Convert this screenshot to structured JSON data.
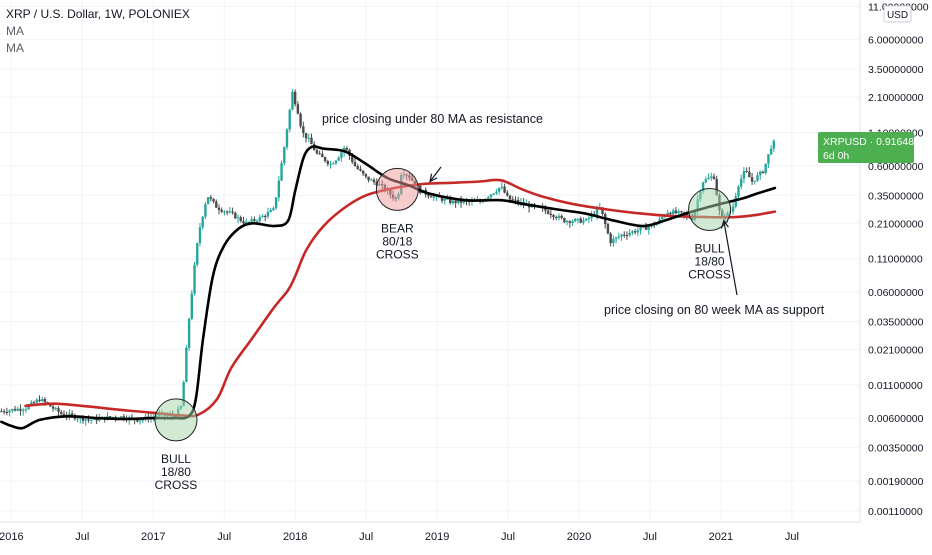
{
  "chart_data": {
    "type": "line",
    "title": "XRP / U.S. Dollar, 1W, POLONIEX",
    "indicators": [
      "MA",
      "MA"
    ],
    "symbol": "XRPUSD",
    "price_label": "XRPUSD · 0.91648163",
    "countdown": "6d 0h",
    "currency": "USD",
    "y_scale": "log",
    "ylim": [
      0.0009,
      11.5
    ],
    "xlim": [
      2015.92,
      2021.98
    ],
    "y_ticks": [
      {
        "value": 11,
        "label": "11.00000000"
      },
      {
        "value": 6,
        "label": "6.00000000"
      },
      {
        "value": 3.5,
        "label": "3.50000000"
      },
      {
        "value": 2.1,
        "label": "2.10000000"
      },
      {
        "value": 1.1,
        "label": "1.10000000"
      },
      {
        "value": 0.6,
        "label": "0.60000000"
      },
      {
        "value": 0.35,
        "label": "0.35000000"
      },
      {
        "value": 0.21,
        "label": "0.21000000"
      },
      {
        "value": 0.11,
        "label": "0.11000000"
      },
      {
        "value": 0.06,
        "label": "0.06000000"
      },
      {
        "value": 0.035,
        "label": "0.03500000"
      },
      {
        "value": 0.021,
        "label": "0.02100000"
      },
      {
        "value": 0.011,
        "label": "0.01100000"
      },
      {
        "value": 0.006,
        "label": "0.00600000"
      },
      {
        "value": 0.0035,
        "label": "0.00350000"
      },
      {
        "value": 0.0019,
        "label": "0.00190000"
      },
      {
        "value": 0.0011,
        "label": "0.00110000"
      }
    ],
    "x_ticks": [
      {
        "value": 2016.0,
        "label": "2016"
      },
      {
        "value": 2016.5,
        "label": "Jul"
      },
      {
        "value": 2017.0,
        "label": "2017"
      },
      {
        "value": 2017.5,
        "label": "Jul"
      },
      {
        "value": 2018.0,
        "label": "2018"
      },
      {
        "value": 2018.5,
        "label": "Jul"
      },
      {
        "value": 2019.0,
        "label": "2019"
      },
      {
        "value": 2019.5,
        "label": "Jul"
      },
      {
        "value": 2020.0,
        "label": "2020"
      },
      {
        "value": 2020.5,
        "label": "Jul"
      },
      {
        "value": 2021.0,
        "label": "2021"
      },
      {
        "value": 2021.5,
        "label": "Jul"
      }
    ],
    "price_anchors": [
      [
        2015.93,
        0.0068
      ],
      [
        2016.1,
        0.0072
      ],
      [
        2016.2,
        0.0085
      ],
      [
        2016.35,
        0.0065
      ],
      [
        2016.55,
        0.0058
      ],
      [
        2016.75,
        0.0062
      ],
      [
        2016.9,
        0.0058
      ],
      [
        2017.05,
        0.0064
      ],
      [
        2017.15,
        0.0062
      ],
      [
        2017.2,
        0.0075
      ],
      [
        2017.25,
        0.035
      ],
      [
        2017.3,
        0.12
      ],
      [
        2017.33,
        0.2
      ],
      [
        2017.38,
        0.35
      ],
      [
        2017.45,
        0.28
      ],
      [
        2017.55,
        0.25
      ],
      [
        2017.65,
        0.21
      ],
      [
        2017.75,
        0.23
      ],
      [
        2017.85,
        0.27
      ],
      [
        2017.92,
        0.8
      ],
      [
        2017.98,
        2.3
      ],
      [
        2018.02,
        1.6
      ],
      [
        2018.05,
        1.1
      ],
      [
        2018.1,
        0.95
      ],
      [
        2018.15,
        0.75
      ],
      [
        2018.25,
        0.62
      ],
      [
        2018.3,
        0.7
      ],
      [
        2018.35,
        0.85
      ],
      [
        2018.42,
        0.6
      ],
      [
        2018.5,
        0.48
      ],
      [
        2018.6,
        0.42
      ],
      [
        2018.72,
        0.32
      ],
      [
        2018.75,
        0.55
      ],
      [
        2018.8,
        0.5
      ],
      [
        2018.88,
        0.38
      ],
      [
        2018.95,
        0.35
      ],
      [
        2019.1,
        0.31
      ],
      [
        2019.3,
        0.31
      ],
      [
        2019.45,
        0.41
      ],
      [
        2019.5,
        0.33
      ],
      [
        2019.6,
        0.3
      ],
      [
        2019.75,
        0.27
      ],
      [
        2019.9,
        0.22
      ],
      [
        2020.05,
        0.22
      ],
      [
        2020.15,
        0.28
      ],
      [
        2020.22,
        0.15
      ],
      [
        2020.3,
        0.17
      ],
      [
        2020.45,
        0.19
      ],
      [
        2020.55,
        0.21
      ],
      [
        2020.62,
        0.26
      ],
      [
        2020.72,
        0.25
      ],
      [
        2020.8,
        0.23
      ],
      [
        2020.87,
        0.45
      ],
      [
        2020.95,
        0.5
      ],
      [
        2021.0,
        0.22
      ],
      [
        2021.08,
        0.27
      ],
      [
        2021.12,
        0.42
      ],
      [
        2021.17,
        0.55
      ],
      [
        2021.22,
        0.45
      ],
      [
        2021.3,
        0.55
      ],
      [
        2021.36,
        0.9
      ],
      [
        2021.38,
        0.91648163
      ]
    ],
    "series": [
      {
        "name": "MA",
        "color": "#000000",
        "values": [
          [
            2015.93,
            0.0056
          ],
          [
            2016.0,
            0.0052
          ],
          [
            2016.08,
            0.005
          ],
          [
            2016.2,
            0.0058
          ],
          [
            2016.4,
            0.0062
          ],
          [
            2016.6,
            0.006
          ],
          [
            2016.8,
            0.0059
          ],
          [
            2017.0,
            0.006
          ],
          [
            2017.15,
            0.006
          ],
          [
            2017.25,
            0.0062
          ],
          [
            2017.3,
            0.0085
          ],
          [
            2017.35,
            0.025
          ],
          [
            2017.42,
            0.08
          ],
          [
            2017.5,
            0.14
          ],
          [
            2017.6,
            0.19
          ],
          [
            2017.7,
            0.21
          ],
          [
            2017.85,
            0.2
          ],
          [
            2017.95,
            0.22
          ],
          [
            2018.0,
            0.38
          ],
          [
            2018.06,
            0.7
          ],
          [
            2018.12,
            0.85
          ],
          [
            2018.2,
            0.82
          ],
          [
            2018.35,
            0.78
          ],
          [
            2018.5,
            0.62
          ],
          [
            2018.65,
            0.48
          ],
          [
            2018.8,
            0.42
          ],
          [
            2018.95,
            0.36
          ],
          [
            2019.2,
            0.32
          ],
          [
            2019.45,
            0.32
          ],
          [
            2019.6,
            0.3
          ],
          [
            2019.85,
            0.27
          ],
          [
            2020.05,
            0.25
          ],
          [
            2020.25,
            0.22
          ],
          [
            2020.45,
            0.2
          ],
          [
            2020.6,
            0.22
          ],
          [
            2020.75,
            0.25
          ],
          [
            2020.9,
            0.28
          ],
          [
            2021.0,
            0.3
          ],
          [
            2021.15,
            0.33
          ],
          [
            2021.25,
            0.36
          ],
          [
            2021.38,
            0.4
          ]
        ]
      },
      {
        "name": "MA",
        "color": "#c62828",
        "values": [
          [
            2016.1,
            0.0075
          ],
          [
            2016.3,
            0.0078
          ],
          [
            2016.55,
            0.0074
          ],
          [
            2016.75,
            0.007
          ],
          [
            2017.0,
            0.0066
          ],
          [
            2017.2,
            0.0063
          ],
          [
            2017.32,
            0.0064
          ],
          [
            2017.45,
            0.0085
          ],
          [
            2017.55,
            0.015
          ],
          [
            2017.7,
            0.026
          ],
          [
            2017.85,
            0.045
          ],
          [
            2017.95,
            0.062
          ],
          [
            2018.0,
            0.08
          ],
          [
            2018.08,
            0.13
          ],
          [
            2018.2,
            0.2
          ],
          [
            2018.35,
            0.28
          ],
          [
            2018.5,
            0.35
          ],
          [
            2018.7,
            0.4
          ],
          [
            2018.9,
            0.43
          ],
          [
            2019.1,
            0.44
          ],
          [
            2019.3,
            0.45
          ],
          [
            2019.45,
            0.46
          ],
          [
            2019.6,
            0.39
          ],
          [
            2019.75,
            0.34
          ],
          [
            2019.95,
            0.3
          ],
          [
            2020.2,
            0.27
          ],
          [
            2020.45,
            0.25
          ],
          [
            2020.65,
            0.24
          ],
          [
            2020.9,
            0.235
          ],
          [
            2021.1,
            0.235
          ],
          [
            2021.25,
            0.245
          ],
          [
            2021.38,
            0.26
          ]
        ]
      }
    ],
    "annotations": [
      {
        "text": "price closing under 80 MA as resistance"
      },
      {
        "text": "price closing on 80 week MA as support"
      }
    ],
    "cross_markers": [
      {
        "x": 2017.16,
        "y": 0.0058,
        "color": "green",
        "label": [
          "BULL",
          "18/80",
          "CROSS"
        ]
      },
      {
        "x": 2018.72,
        "y": 0.39,
        "color": "red",
        "label": [
          "BEAR",
          "80/18",
          "CROSS"
        ]
      },
      {
        "x": 2020.92,
        "y": 0.27,
        "color": "green",
        "label": [
          "BULL",
          "18/80",
          "CROSS"
        ]
      }
    ],
    "arrows": [
      {
        "x": 2018.95,
        "y": 0.45
      },
      {
        "x": 2021.02,
        "y": 0.22
      }
    ],
    "colors": {
      "ma_fast": "#000000",
      "ma_slow": "#c62828",
      "candle_up": "#26a69a",
      "candle_down": "#4a4a4a",
      "price_badge": "#4caf50",
      "bull_fill": "#a5d6a7",
      "bear_fill": "#ef9a9a"
    }
  }
}
